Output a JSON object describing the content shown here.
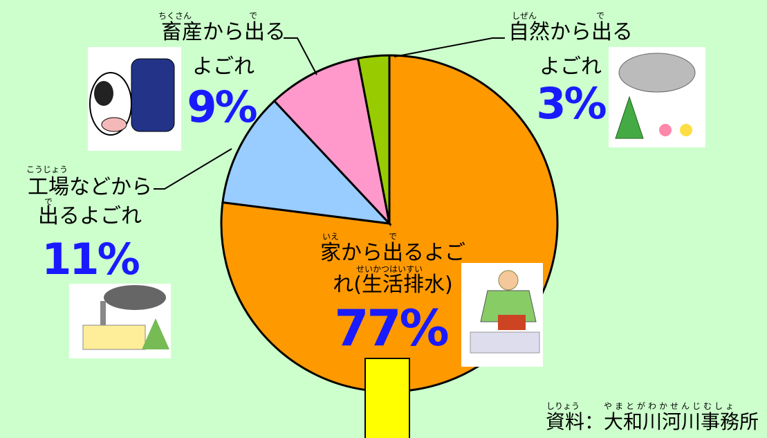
{
  "chart_data": {
    "type": "pie",
    "categories": [
      "家から出るよごれ(生活排水)",
      "工場などから出るよごれ",
      "畜産から出るよごれ",
      "自然から出るよごれ"
    ],
    "values": [
      77,
      11,
      9,
      3
    ],
    "value_labels": [
      "77%",
      "11%",
      "9%",
      "3%"
    ],
    "colors": [
      "#ff9900",
      "#99ccff",
      "#ff99cc",
      "#99cc00"
    ],
    "furigana": [
      [
        "いえ",
        "で",
        "せいかつはいすい"
      ],
      [
        "こうじょう",
        "で"
      ],
      [
        "ちくさん",
        "で"
      ],
      [
        "しぜん",
        "で"
      ]
    ],
    "source": "資料：大和川河川事務所",
    "source_furigana": [
      "しりょう",
      "やまとがわかせんじむしょ"
    ]
  }
}
